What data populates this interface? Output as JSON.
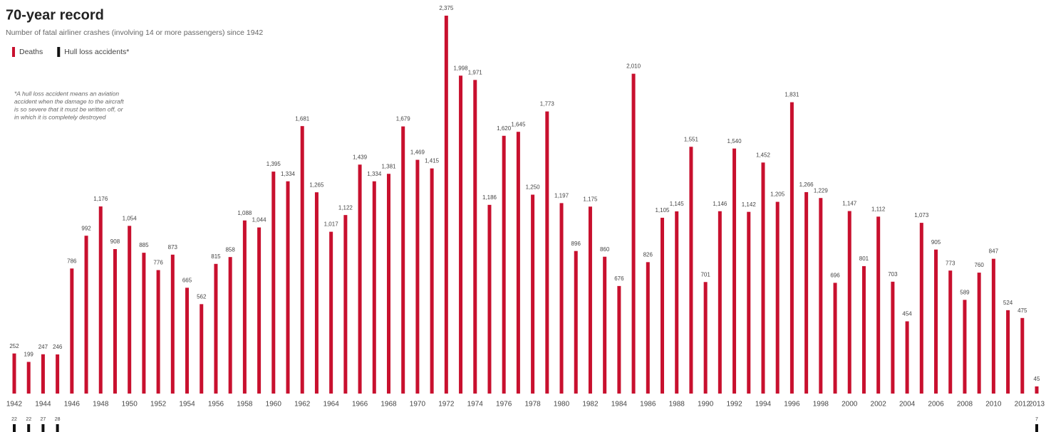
{
  "chart_data": {
    "type": "bar",
    "title": "70-year record",
    "subtitle": "Number of fatal airliner crashes (involving 14 or more passengers) since 1942",
    "annotation": [
      "*A hull loss accident means an aviation",
      "accident when the damage to the aircraft",
      "is so severe that it must be written off, or",
      "in which it is completely destroyed"
    ],
    "categories": [
      "1942",
      null,
      "1944",
      null,
      "1946",
      null,
      "1948",
      null,
      "1950",
      null,
      "1952",
      null,
      "1954",
      null,
      "1956",
      null,
      "1958",
      null,
      "1960",
      null,
      "1962",
      null,
      "1964",
      null,
      "1966",
      null,
      "1968",
      null,
      "1970",
      null,
      "1972",
      null,
      "1974",
      null,
      "1976",
      null,
      "1978",
      null,
      "1980",
      null,
      "1982",
      null,
      "1984",
      null,
      "1986",
      null,
      "1988",
      null,
      "1990",
      null,
      "1992",
      null,
      "1994",
      null,
      "1996",
      null,
      "1998",
      null,
      "2000",
      null,
      "2002",
      null,
      "2004",
      null,
      "2006",
      null,
      "2008",
      null,
      "2010",
      null,
      "2012",
      "2013"
    ],
    "series": [
      {
        "name": "Deaths",
        "color": "#c8102e",
        "values": [
          252,
          199,
          247,
          246,
          786,
          992,
          1176,
          908,
          1054,
          885,
          776,
          873,
          665,
          562,
          815,
          858,
          1088,
          1044,
          1395,
          1334,
          1681,
          1265,
          1017,
          1122,
          1439,
          1334,
          1381,
          1679,
          1469,
          1415,
          2375,
          1998,
          1971,
          1186,
          1620,
          1645,
          1250,
          1773,
          1197,
          896,
          1175,
          860,
          676,
          2010,
          826,
          1105,
          1145,
          1551,
          701,
          1146,
          1540,
          1142,
          1452,
          1205,
          1831,
          1266,
          1229,
          696,
          1147,
          801,
          1112,
          703,
          454,
          1073,
          905,
          773,
          589,
          760,
          847,
          524,
          475,
          45
        ],
        "value_labels": [
          "252",
          "199",
          "247",
          "246",
          "786",
          "992",
          "1,176",
          "908",
          "1,054",
          "885",
          "776",
          "873",
          "665",
          "562",
          "815",
          "858",
          "1,088",
          "1,044",
          "1,395",
          "1,334",
          "1,681",
          "1,265",
          "1,017",
          "1,122",
          "1,439",
          "1,334",
          "1,381",
          "1,679",
          "1,469",
          "1,415",
          "2,375",
          "1,998",
          "1,971",
          "1,186",
          "1,620",
          "1,645",
          "1,250",
          "1,773",
          "1,197",
          "896",
          "1,175",
          "860",
          "676",
          "2,010",
          "826",
          "1,105",
          "1,145",
          "1,551",
          "701",
          "1,146",
          "1,540",
          "1,142",
          "1,452",
          "1,205",
          "1,831",
          "1,266",
          "1,229",
          "696",
          "1,147",
          "801",
          "1,112",
          "703",
          "454",
          "1,073",
          "905",
          "773",
          "589",
          "760",
          "847",
          "524",
          "475",
          "45"
        ]
      },
      {
        "name": "Hull loss accidents*",
        "color": "#111111",
        "values": [
          22,
          22,
          27,
          28,
          null,
          null,
          null,
          null,
          null,
          null,
          null,
          null,
          null,
          null,
          null,
          null,
          null,
          null,
          null,
          null,
          null,
          null,
          null,
          null,
          null,
          null,
          null,
          null,
          null,
          null,
          null,
          null,
          null,
          null,
          null,
          null,
          null,
          null,
          null,
          null,
          null,
          null,
          null,
          null,
          null,
          null,
          null,
          null,
          null,
          null,
          null,
          null,
          null,
          null,
          null,
          null,
          null,
          null,
          null,
          null,
          null,
          null,
          null,
          null,
          null,
          null,
          null,
          null,
          null,
          null,
          null,
          7
        ]
      }
    ]
  }
}
